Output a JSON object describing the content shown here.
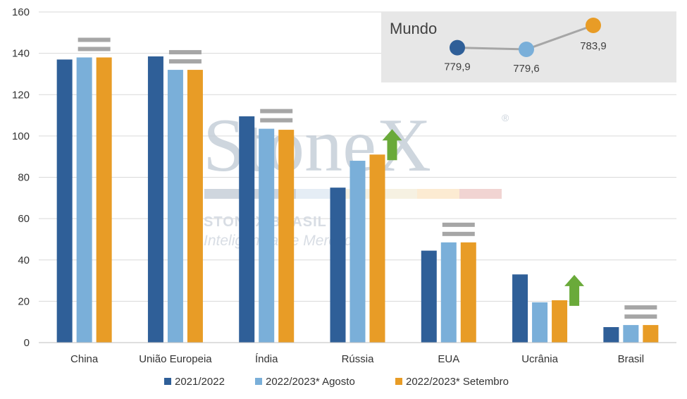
{
  "chart_data": {
    "type": "bar",
    "title": "",
    "xlabel": "",
    "ylabel": "",
    "ylim": [
      0,
      160
    ],
    "yticks": [
      0,
      20,
      40,
      60,
      80,
      100,
      120,
      140,
      160
    ],
    "grid": true,
    "legend_position": "bottom-center",
    "categories": [
      "China",
      "União Europeia",
      "Índia",
      "Rússia",
      "EUA",
      "Ucrânia",
      "Brasil"
    ],
    "series": [
      {
        "name": "2021/2022",
        "color": "#2f5f98",
        "values": [
          137,
          138.5,
          109.5,
          75,
          44.5,
          33,
          7.5
        ]
      },
      {
        "name": "2022/2023* Agosto",
        "color": "#7aafd9",
        "values": [
          138,
          132,
          103.5,
          88,
          48.5,
          19.5,
          8.5
        ]
      },
      {
        "name": "2022/2023* Setembro",
        "color": "#e89c26",
        "values": [
          138,
          132,
          103,
          91,
          48.5,
          20.5,
          8.5
        ]
      }
    ],
    "change_markers": [
      {
        "category": "China",
        "type": "equal"
      },
      {
        "category": "União Europeia",
        "type": "equal"
      },
      {
        "category": "Índia",
        "type": "equal"
      },
      {
        "category": "Rússia",
        "type": "up"
      },
      {
        "category": "EUA",
        "type": "equal"
      },
      {
        "category": "Ucrânia",
        "type": "up"
      },
      {
        "category": "Brasil",
        "type": "equal"
      }
    ],
    "inset": {
      "title": "Mundo",
      "points": [
        {
          "label": "779,9",
          "value": 779.9,
          "color": "#2f5f98"
        },
        {
          "label": "779,6",
          "value": 779.6,
          "color": "#7aafd9"
        },
        {
          "label": "783,9",
          "value": 783.9,
          "color": "#e89c26"
        }
      ]
    }
  },
  "colors": {
    "grid": "#d9d9d9",
    "axis": "#bfbfbf",
    "equal_marker": "#a6a6a6",
    "up_arrow": "#6aaa3a",
    "inset_bg": "#e7e7e7",
    "inset_line": "#a6a6a6"
  },
  "watermark": {
    "brand": "StoneX",
    "registered": "®",
    "line1": "STONEX BRASIL",
    "line2": "Inteligência de Mercado"
  }
}
